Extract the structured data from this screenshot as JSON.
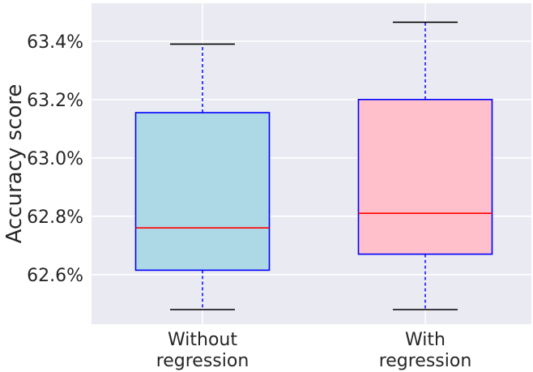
{
  "chart_data": {
    "type": "box",
    "title": "",
    "xlabel": "",
    "ylabel": "Accuracy score",
    "ylim": [
      62.43,
      63.53
    ],
    "yticks": [
      62.6,
      62.8,
      63.0,
      63.2,
      63.4
    ],
    "ytick_labels": [
      "62.6%",
      "62.8%",
      "63.0%",
      "63.2%",
      "63.4%"
    ],
    "grid": true,
    "categories": [
      [
        "Without",
        "regression"
      ],
      [
        "With",
        "regression"
      ]
    ],
    "boxes": [
      {
        "whisker_low": 62.48,
        "q1": 62.615,
        "median": 62.76,
        "q3": 63.155,
        "whisker_high": 63.39,
        "fill": "#add8e6"
      },
      {
        "whisker_low": 62.48,
        "q1": 62.67,
        "median": 62.81,
        "q3": 63.2,
        "whisker_high": 63.465,
        "fill": "#ffc0cb"
      }
    ],
    "colors": {
      "background": "#eaeaf2",
      "grid": "#ffffff",
      "box_edge": "#0000ff",
      "median": "#ff0000",
      "whisker": "#0000ff",
      "cap": "#000000"
    }
  }
}
